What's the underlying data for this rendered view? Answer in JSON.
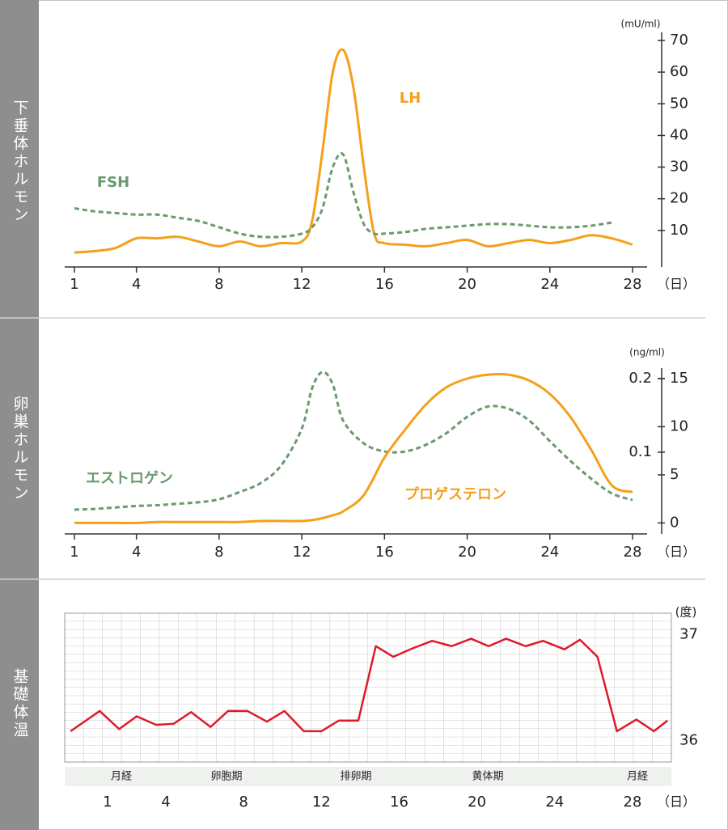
{
  "chart_data": [
    {
      "type": "line",
      "section": "下垂体ホルモン",
      "unit": "(mU/ml)",
      "x_unit": "（日）",
      "smooth": true,
      "x": [
        1,
        2,
        3,
        4,
        5,
        6,
        7,
        8,
        9,
        10,
        11,
        12,
        12.5,
        13,
        13.5,
        14,
        14.5,
        15,
        15.5,
        16,
        17,
        18,
        19,
        20,
        21,
        22,
        23,
        24,
        25,
        26,
        27,
        28
      ],
      "xlim": [
        1,
        28
      ],
      "xticks": [
        1,
        4,
        8,
        12,
        16,
        20,
        24,
        28
      ],
      "ylim": [
        0,
        70
      ],
      "yticks": [
        10,
        20,
        30,
        40,
        50,
        60,
        70
      ],
      "series": [
        {
          "name": "LH",
          "color": "#f5a01a",
          "dashed": false,
          "values": [
            3,
            3.5,
            4.5,
            7.5,
            7.5,
            8,
            6.5,
            5,
            6.5,
            5,
            6,
            6.5,
            13,
            35,
            60,
            67,
            55,
            30,
            9,
            6,
            5.5,
            5,
            6,
            7,
            5,
            6,
            7,
            6,
            7,
            8.5,
            7.5,
            5.5
          ]
        },
        {
          "name": "FSH",
          "color": "#6a9a6e",
          "dashed": true,
          "values": [
            17,
            16,
            15.5,
            15,
            15,
            14,
            13,
            11,
            9,
            8,
            8,
            9,
            11,
            17,
            30,
            34,
            22,
            12,
            9,
            9,
            9.5,
            10.5,
            11,
            11.5,
            12,
            12,
            11.5,
            11,
            11,
            11.5,
            12.5,
            null
          ]
        }
      ]
    },
    {
      "type": "line",
      "section": "卵巣ホルモン",
      "unit": "(ng/ml)",
      "x_unit": "（日）",
      "smooth": true,
      "x": [
        1,
        2,
        3,
        4,
        5,
        6,
        7,
        8,
        9,
        10,
        11,
        12,
        12.5,
        13,
        13.5,
        14,
        15,
        16,
        17,
        18,
        19,
        20,
        21,
        22,
        23,
        24,
        25,
        26,
        27,
        28
      ],
      "xlim": [
        1,
        28
      ],
      "xticks": [
        1,
        4,
        8,
        12,
        16,
        20,
        24,
        28
      ],
      "ylim": [
        -0.3,
        15
      ],
      "yticks": [
        0,
        5,
        10,
        15
      ],
      "y2lim": [
        0,
        0.2
      ],
      "y2ticks": [
        0.1,
        0.2
      ],
      "series": [
        {
          "name": "エストロゲン",
          "color": "#6a9a6e",
          "dashed": true,
          "axis": "y2",
          "values": [
            0.022,
            0.023,
            0.025,
            0.027,
            0.028,
            0.03,
            0.032,
            0.036,
            0.046,
            0.058,
            0.082,
            0.132,
            0.187,
            0.209,
            0.192,
            0.143,
            0.112,
            0.101,
            0.101,
            0.11,
            0.126,
            0.148,
            0.162,
            0.159,
            0.143,
            0.115,
            0.088,
            0.064,
            0.044,
            0.035
          ]
        },
        {
          "name": "プロゲステロン",
          "color": "#f5a01a",
          "dashed": false,
          "values": [
            0,
            0,
            0,
            0,
            0.1,
            0.1,
            0.1,
            0.1,
            0.1,
            0.2,
            0.2,
            0.2,
            0.3,
            0.5,
            0.8,
            1.2,
            2.9,
            6.8,
            9.7,
            12.3,
            14.1,
            15,
            15.4,
            15.4,
            14.8,
            13.4,
            11,
            7.6,
            3.9,
            3.2
          ]
        }
      ]
    },
    {
      "type": "line",
      "section": "基礎体温",
      "unit": "(度)",
      "x_unit": "（日）",
      "smooth": false,
      "phases": [
        "月経",
        "卵胞期",
        "排卵期",
        "黄体期",
        "月経"
      ],
      "x": [
        -0.9,
        0.6,
        1.6,
        2.5,
        3.5,
        4.4,
        5.3,
        6.3,
        7.2,
        8.2,
        9.2,
        10.1,
        11.1,
        12.0,
        12.9,
        13.9,
        14.8,
        15.7,
        16.7,
        17.7,
        18.7,
        19.7,
        20.6,
        21.5,
        22.5,
        23.4,
        24.5,
        25.3,
        26.2,
        27.2,
        28.2,
        29.1,
        29.8
      ],
      "xlim": [
        -1.2,
        30
      ],
      "xticks": [
        1,
        4,
        8,
        12,
        16,
        20,
        24,
        28
      ],
      "ylim": [
        35.8,
        37.2
      ],
      "yticks": [
        36,
        37
      ],
      "color": "#e0182d",
      "values": [
        36.09,
        36.28,
        36.11,
        36.23,
        36.15,
        36.16,
        36.27,
        36.13,
        36.28,
        36.28,
        36.18,
        36.28,
        36.09,
        36.09,
        36.19,
        36.19,
        36.89,
        36.79,
        36.87,
        36.94,
        36.89,
        36.96,
        36.89,
        36.96,
        36.89,
        36.94,
        36.86,
        36.95,
        36.79,
        36.09,
        36.2,
        36.09,
        36.19
      ]
    }
  ]
}
